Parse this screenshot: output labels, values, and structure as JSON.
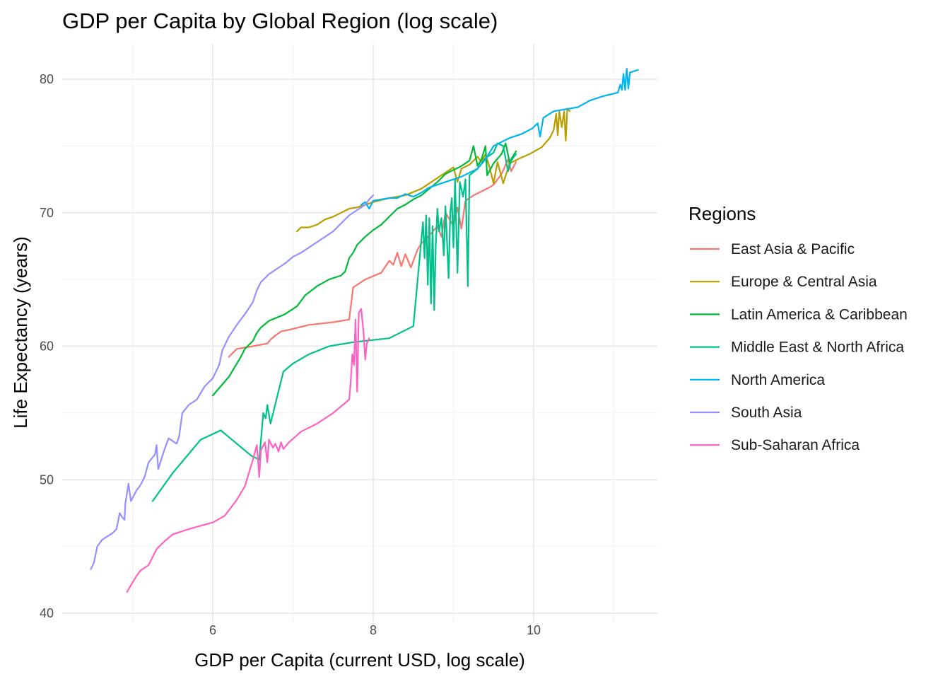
{
  "chart_data": {
    "type": "line",
    "title": "GDP per Capita by Global Region (log scale)",
    "xlabel": "GDP per Capita (current USD, log scale)",
    "ylabel": "Life Expectancy (years)",
    "xlim": [
      4.3,
      11.6
    ],
    "ylim": [
      39.5,
      82.5
    ],
    "x_ticks": [
      6,
      8,
      10
    ],
    "y_ticks": [
      40,
      50,
      60,
      70,
      80
    ],
    "grid": true,
    "legend": {
      "title": "Regions",
      "position": "right"
    },
    "series": [
      {
        "name": "East Asia & Pacific",
        "color": "#F8766D",
        "points": [
          [
            6.2,
            59.2
          ],
          [
            6.3,
            59.8
          ],
          [
            6.5,
            60.0
          ],
          [
            6.68,
            60.2
          ],
          [
            6.72,
            60.5
          ],
          [
            6.78,
            60.8
          ],
          [
            6.85,
            61.1
          ],
          [
            7.0,
            61.3
          ],
          [
            7.2,
            61.6
          ],
          [
            7.5,
            61.8
          ],
          [
            7.7,
            62.0
          ],
          [
            7.75,
            64.4
          ],
          [
            7.8,
            64.6
          ],
          [
            7.9,
            65.0
          ],
          [
            8.1,
            65.5
          ],
          [
            8.2,
            66.4
          ],
          [
            8.25,
            66.1
          ],
          [
            8.3,
            67.0
          ],
          [
            8.35,
            66.0
          ],
          [
            8.4,
            66.9
          ],
          [
            8.47,
            65.9
          ],
          [
            8.55,
            67.2
          ],
          [
            8.6,
            67.7
          ],
          [
            8.7,
            68.3
          ],
          [
            8.8,
            69.0
          ],
          [
            8.85,
            68.2
          ],
          [
            8.9,
            70.0
          ],
          [
            9.0,
            69.0
          ],
          [
            9.05,
            70.4
          ],
          [
            9.1,
            68.8
          ],
          [
            9.15,
            70.9
          ],
          [
            9.25,
            71.3
          ],
          [
            9.35,
            71.6
          ],
          [
            9.45,
            71.9
          ],
          [
            9.5,
            72.1
          ],
          [
            9.6,
            72.9
          ],
          [
            9.68,
            74.0
          ],
          [
            9.72,
            73.1
          ],
          [
            9.78,
            73.8
          ]
        ]
      },
      {
        "name": "Europe & Central Asia",
        "color": "#B79F00",
        "points": [
          [
            7.05,
            68.6
          ],
          [
            7.1,
            68.9
          ],
          [
            7.2,
            68.9
          ],
          [
            7.3,
            69.1
          ],
          [
            7.4,
            69.5
          ],
          [
            7.5,
            69.7
          ],
          [
            7.6,
            70.0
          ],
          [
            7.7,
            70.3
          ],
          [
            7.8,
            70.4
          ],
          [
            7.9,
            70.6
          ],
          [
            8.0,
            70.8
          ],
          [
            8.2,
            71.1
          ],
          [
            8.4,
            71.3
          ],
          [
            8.6,
            71.8
          ],
          [
            8.75,
            72.4
          ],
          [
            8.9,
            73.0
          ],
          [
            9.0,
            73.4
          ],
          [
            9.05,
            72.3
          ],
          [
            9.1,
            73.3
          ],
          [
            9.2,
            73.6
          ],
          [
            9.3,
            74.2
          ],
          [
            9.35,
            73.8
          ],
          [
            9.4,
            74.4
          ],
          [
            9.45,
            73.4
          ],
          [
            9.5,
            72.2
          ],
          [
            9.55,
            73.8
          ],
          [
            9.62,
            72.2
          ],
          [
            9.7,
            73.7
          ],
          [
            9.8,
            74.0
          ],
          [
            9.95,
            74.4
          ],
          [
            10.1,
            74.9
          ],
          [
            10.2,
            75.6
          ],
          [
            10.25,
            76.2
          ],
          [
            10.28,
            77.4
          ],
          [
            10.3,
            75.8
          ],
          [
            10.32,
            77.6
          ],
          [
            10.35,
            76.4
          ],
          [
            10.38,
            77.6
          ],
          [
            10.4,
            75.4
          ],
          [
            10.42,
            77.8
          ],
          [
            10.45,
            77.6
          ]
        ]
      },
      {
        "name": "Latin America & Caribbean",
        "color": "#00BA38",
        "points": [
          [
            6.0,
            56.3
          ],
          [
            6.1,
            57.0
          ],
          [
            6.2,
            57.7
          ],
          [
            6.28,
            58.5
          ],
          [
            6.35,
            59.2
          ],
          [
            6.4,
            59.8
          ],
          [
            6.5,
            60.4
          ],
          [
            6.55,
            61.0
          ],
          [
            6.6,
            61.4
          ],
          [
            6.7,
            61.9
          ],
          [
            6.9,
            62.4
          ],
          [
            7.05,
            63.0
          ],
          [
            7.15,
            63.8
          ],
          [
            7.3,
            64.5
          ],
          [
            7.45,
            65.0
          ],
          [
            7.6,
            65.3
          ],
          [
            7.65,
            65.6
          ],
          [
            7.7,
            66.6
          ],
          [
            7.75,
            67.0
          ],
          [
            7.8,
            67.6
          ],
          [
            7.9,
            68.2
          ],
          [
            8.0,
            68.7
          ],
          [
            8.1,
            69.1
          ],
          [
            8.2,
            69.7
          ],
          [
            8.3,
            70.3
          ],
          [
            8.4,
            70.6
          ],
          [
            8.5,
            71.0
          ],
          [
            8.6,
            71.3
          ],
          [
            8.7,
            71.8
          ],
          [
            8.8,
            72.3
          ],
          [
            8.9,
            72.9
          ],
          [
            9.0,
            73.2
          ],
          [
            9.1,
            73.5
          ],
          [
            9.2,
            73.9
          ],
          [
            9.25,
            75.0
          ],
          [
            9.3,
            73.5
          ],
          [
            9.35,
            74.0
          ],
          [
            9.4,
            75.0
          ],
          [
            9.42,
            72.8
          ],
          [
            9.5,
            73.7
          ],
          [
            9.6,
            74.4
          ],
          [
            9.65,
            75.2
          ],
          [
            9.7,
            73.8
          ],
          [
            9.78,
            74.6
          ]
        ]
      },
      {
        "name": "Middle East & North Africa",
        "color": "#00C08B",
        "points": [
          [
            5.25,
            48.4
          ],
          [
            5.5,
            50.5
          ],
          [
            5.85,
            53.0
          ],
          [
            6.1,
            53.7
          ],
          [
            6.3,
            52.7
          ],
          [
            6.48,
            51.8
          ],
          [
            6.58,
            51.5
          ],
          [
            6.63,
            55.0
          ],
          [
            6.66,
            54.6
          ],
          [
            6.68,
            55.6
          ],
          [
            6.72,
            54.2
          ],
          [
            6.88,
            58.1
          ],
          [
            7.0,
            58.7
          ],
          [
            7.2,
            59.4
          ],
          [
            7.45,
            60.0
          ],
          [
            7.75,
            60.3
          ],
          [
            8.2,
            60.6
          ],
          [
            8.5,
            61.5
          ],
          [
            8.62,
            69.3
          ],
          [
            8.64,
            66.6
          ],
          [
            8.66,
            69.8
          ],
          [
            8.68,
            64.6
          ],
          [
            8.7,
            69.6
          ],
          [
            8.72,
            63.2
          ],
          [
            8.74,
            69.0
          ],
          [
            8.76,
            62.7
          ],
          [
            8.78,
            67.5
          ],
          [
            8.8,
            70.3
          ],
          [
            8.82,
            68.6
          ],
          [
            8.85,
            69.6
          ],
          [
            8.88,
            66.8
          ],
          [
            8.9,
            70.5
          ],
          [
            8.94,
            65.1
          ],
          [
            8.96,
            70.0
          ],
          [
            8.98,
            71.1
          ],
          [
            9.0,
            67.4
          ],
          [
            9.02,
            72.5
          ],
          [
            9.05,
            65.5
          ],
          [
            9.08,
            72.3
          ],
          [
            9.12,
            71.2
          ],
          [
            9.15,
            72.5
          ],
          [
            9.18,
            64.5
          ],
          [
            9.2,
            72.8
          ],
          [
            9.3,
            73.3
          ],
          [
            9.4,
            74.1
          ],
          [
            9.5,
            74.5
          ],
          [
            9.55,
            75.2
          ],
          [
            9.62,
            75.0
          ],
          [
            9.68,
            73.1
          ],
          [
            9.72,
            73.9
          ],
          [
            9.78,
            74.4
          ]
        ]
      },
      {
        "name": "North America",
        "color": "#00B4EF",
        "points": [
          [
            7.85,
            70.6
          ],
          [
            7.9,
            70.8
          ],
          [
            7.95,
            70.3
          ],
          [
            8.0,
            70.9
          ],
          [
            8.1,
            71.0
          ],
          [
            8.2,
            71.1
          ],
          [
            8.3,
            71.1
          ],
          [
            8.4,
            71.4
          ],
          [
            8.5,
            71.2
          ],
          [
            8.6,
            71.5
          ],
          [
            8.7,
            71.9
          ],
          [
            8.9,
            72.3
          ],
          [
            9.1,
            72.7
          ],
          [
            9.3,
            73.3
          ],
          [
            9.4,
            74.0
          ],
          [
            9.5,
            75.0
          ],
          [
            9.6,
            75.3
          ],
          [
            9.7,
            75.6
          ],
          [
            9.85,
            75.9
          ],
          [
            9.98,
            76.3
          ],
          [
            10.05,
            76.7
          ],
          [
            10.08,
            75.7
          ],
          [
            10.12,
            77.1
          ],
          [
            10.25,
            77.6
          ],
          [
            10.45,
            77.8
          ],
          [
            10.55,
            77.9
          ],
          [
            10.7,
            78.4
          ],
          [
            10.85,
            78.7
          ],
          [
            11.05,
            79.0
          ],
          [
            11.08,
            79.6
          ],
          [
            11.1,
            79.2
          ],
          [
            11.12,
            80.4
          ],
          [
            11.14,
            79.2
          ],
          [
            11.16,
            80.8
          ],
          [
            11.18,
            79.3
          ],
          [
            11.2,
            80.5
          ],
          [
            11.3,
            80.7
          ]
        ]
      },
      {
        "name": "South Asia",
        "color": "#9590FF",
        "points": [
          [
            4.48,
            43.3
          ],
          [
            4.52,
            43.8
          ],
          [
            4.56,
            45.0
          ],
          [
            4.62,
            45.5
          ],
          [
            4.75,
            46.0
          ],
          [
            4.8,
            46.3
          ],
          [
            4.84,
            47.5
          ],
          [
            4.87,
            47.2
          ],
          [
            4.9,
            47.0
          ],
          [
            4.91,
            48.2
          ],
          [
            4.95,
            49.7
          ],
          [
            4.98,
            48.4
          ],
          [
            5.05,
            49.2
          ],
          [
            5.1,
            49.6
          ],
          [
            5.15,
            50.2
          ],
          [
            5.2,
            51.3
          ],
          [
            5.28,
            51.9
          ],
          [
            5.3,
            52.6
          ],
          [
            5.32,
            50.8
          ],
          [
            5.4,
            52.3
          ],
          [
            5.45,
            53.1
          ],
          [
            5.55,
            52.7
          ],
          [
            5.58,
            53.2
          ],
          [
            5.62,
            55.0
          ],
          [
            5.7,
            55.6
          ],
          [
            5.8,
            56.0
          ],
          [
            5.9,
            57.0
          ],
          [
            6.0,
            57.6
          ],
          [
            6.08,
            58.6
          ],
          [
            6.12,
            59.7
          ],
          [
            6.2,
            60.7
          ],
          [
            6.3,
            61.6
          ],
          [
            6.4,
            62.4
          ],
          [
            6.5,
            63.3
          ],
          [
            6.55,
            64.2
          ],
          [
            6.6,
            64.8
          ],
          [
            6.7,
            65.4
          ],
          [
            6.75,
            65.6
          ],
          [
            6.8,
            65.8
          ],
          [
            6.9,
            66.2
          ],
          [
            7.0,
            66.7
          ],
          [
            7.1,
            67.0
          ],
          [
            7.2,
            67.4
          ],
          [
            7.3,
            67.8
          ],
          [
            7.4,
            68.2
          ],
          [
            7.5,
            68.6
          ],
          [
            7.6,
            69.2
          ],
          [
            7.7,
            69.8
          ],
          [
            7.8,
            70.2
          ],
          [
            7.9,
            70.6
          ],
          [
            7.95,
            71.0
          ],
          [
            8.0,
            71.3
          ]
        ]
      },
      {
        "name": "Sub-Saharan Africa",
        "color": "#FF61C3",
        "points": [
          [
            4.93,
            41.6
          ],
          [
            5.0,
            42.3
          ],
          [
            5.05,
            42.8
          ],
          [
            5.1,
            43.2
          ],
          [
            5.2,
            43.6
          ],
          [
            5.3,
            44.8
          ],
          [
            5.4,
            45.4
          ],
          [
            5.5,
            45.9
          ],
          [
            5.7,
            46.3
          ],
          [
            6.0,
            46.8
          ],
          [
            6.15,
            47.3
          ],
          [
            6.3,
            48.5
          ],
          [
            6.4,
            49.5
          ],
          [
            6.5,
            51.5
          ],
          [
            6.55,
            52.6
          ],
          [
            6.58,
            50.2
          ],
          [
            6.6,
            52.2
          ],
          [
            6.65,
            52.8
          ],
          [
            6.68,
            51.3
          ],
          [
            6.7,
            53.0
          ],
          [
            6.75,
            52.4
          ],
          [
            6.78,
            52.7
          ],
          [
            6.82,
            52.1
          ],
          [
            6.85,
            52.8
          ],
          [
            6.88,
            52.3
          ],
          [
            6.95,
            52.8
          ],
          [
            7.1,
            53.6
          ],
          [
            7.3,
            54.2
          ],
          [
            7.5,
            55.0
          ],
          [
            7.7,
            56.0
          ],
          [
            7.72,
            57.4
          ],
          [
            7.74,
            59.4
          ],
          [
            7.76,
            58.6
          ],
          [
            7.78,
            62.0
          ],
          [
            7.8,
            56.6
          ],
          [
            7.82,
            62.5
          ],
          [
            7.85,
            62.8
          ],
          [
            7.88,
            61.0
          ],
          [
            7.9,
            59.0
          ],
          [
            7.92,
            60.2
          ],
          [
            7.95,
            60.6
          ]
        ]
      }
    ]
  }
}
